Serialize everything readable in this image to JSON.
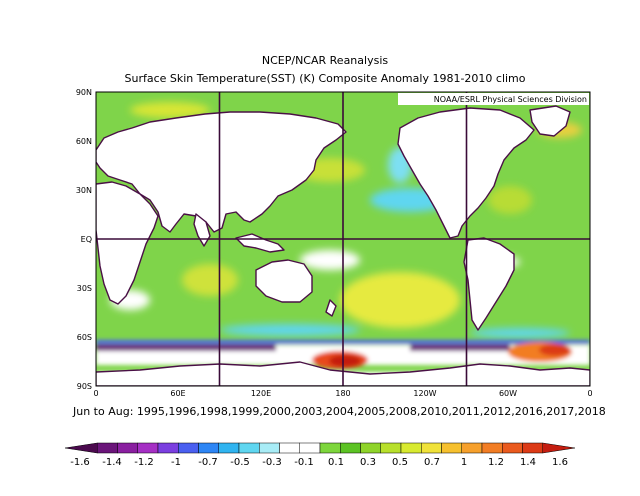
{
  "title_line1": "NCEP/NCAR Reanalysis",
  "title_line2": "Surface Skin Temperature(SST) (K) Composite Anomaly 1981-2010 climo",
  "credit": "NOAA/ESRL Physical Sciences Division",
  "period": "Jun to Aug: 1995,1996,1998,1999,2000,2003,2004,2005,2008,2010,2011,2012,2016,2017,2018",
  "lat_labels": [
    "90N",
    "60N",
    "30N",
    "EQ",
    "30S",
    "60S",
    "90S"
  ],
  "lon_labels": [
    "0",
    "60E",
    "120E",
    "180",
    "120W",
    "60W",
    "0"
  ],
  "colorbar": {
    "labels": [
      "-1.6",
      "-1.4",
      "-1.2",
      "-1",
      "-0.7",
      "-0.5",
      "-0.3",
      "-0.1",
      "0.1",
      "0.3",
      "0.5",
      "0.7",
      "1",
      "1.2",
      "1.4",
      "1.6"
    ],
    "colors": [
      "#4b0a4e",
      "#6b157a",
      "#8a1fa0",
      "#a52fc4",
      "#7b3fe0",
      "#4a5ff0",
      "#2e86f5",
      "#30b4f0",
      "#5fd6f0",
      "#a8ecf6",
      "#ffffff",
      "#ffffff",
      "#7dd63c",
      "#5cc324",
      "#8fd42a",
      "#b8e02c",
      "#d8ea30",
      "#f0e23a",
      "#f6c02e",
      "#f6a02c",
      "#f27d24",
      "#ea5a1e",
      "#dc3a16",
      "#c41d10"
    ]
  },
  "colors": {
    "coast": "#4a1046",
    "gridline": "#3a0a38"
  }
}
